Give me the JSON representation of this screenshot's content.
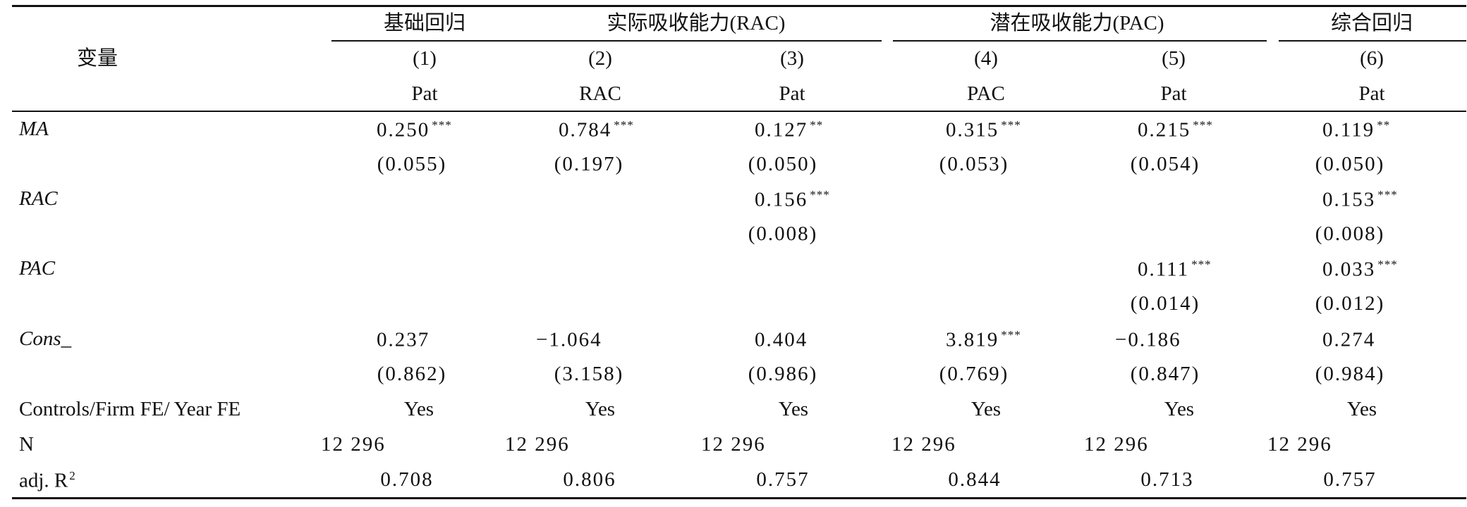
{
  "table": {
    "variable_header": "变量",
    "groups": [
      "基础回归",
      "实际吸收能力(RAC)",
      "潜在吸收能力(PAC)",
      "综合回归"
    ],
    "col_numbers": [
      "(1)",
      "(2)",
      "(3)",
      "(4)",
      "(5)",
      "(6)"
    ],
    "dep_vars": [
      "Pat",
      "RAC",
      "Pat",
      "PAC",
      "Pat",
      "Pat"
    ],
    "rows": {
      "ma": {
        "label": "MA",
        "coef": [
          {
            "v": "0.250",
            "s": "***"
          },
          {
            "v": "0.784",
            "s": "***"
          },
          {
            "v": "0.127",
            "s": "**"
          },
          {
            "v": "0.315",
            "s": "***"
          },
          {
            "v": "0.215",
            "s": "***"
          },
          {
            "v": "0.119",
            "s": "**"
          }
        ],
        "se": [
          "(0.055)",
          "(0.197)",
          "(0.050)",
          "(0.053)",
          "(0.054)",
          "(0.050)"
        ]
      },
      "rac": {
        "label": "RAC",
        "c3": {
          "v": "0.156",
          "s": "***"
        },
        "c6": {
          "v": "0.153",
          "s": "***"
        },
        "se3": "(0.008)",
        "se6": "(0.008)"
      },
      "pac": {
        "label": "PAC",
        "c5": {
          "v": "0.111",
          "s": "***"
        },
        "c6": {
          "v": "0.033",
          "s": "***"
        },
        "se5": "(0.014)",
        "se6": "(0.012)"
      },
      "cons": {
        "label": "Cons_",
        "coef": [
          {
            "v": "0.237",
            "s": ""
          },
          {
            "v": "−1.064",
            "s": ""
          },
          {
            "v": "0.404",
            "s": ""
          },
          {
            "v": "3.819",
            "s": "***"
          },
          {
            "v": "−0.186",
            "s": ""
          },
          {
            "v": "0.274",
            "s": ""
          }
        ],
        "se": [
          "(0.862)",
          "(3.158)",
          "(0.986)",
          "(0.769)",
          "(0.847)",
          "(0.984)"
        ]
      },
      "controls": {
        "label": "Controls/Firm FE/ Year FE",
        "values": [
          "Yes",
          "Yes",
          "Yes",
          "Yes",
          "Yes",
          "Yes"
        ]
      },
      "n": {
        "label": "N",
        "values": [
          "12 296",
          "12 296",
          "12 296",
          "12 296",
          "12 296",
          "12 296"
        ]
      },
      "r2": {
        "label": "adj. R",
        "label_sup": "2",
        "values": [
          "0.708",
          "0.806",
          "0.757",
          "0.844",
          "0.713",
          "0.757"
        ]
      }
    }
  }
}
